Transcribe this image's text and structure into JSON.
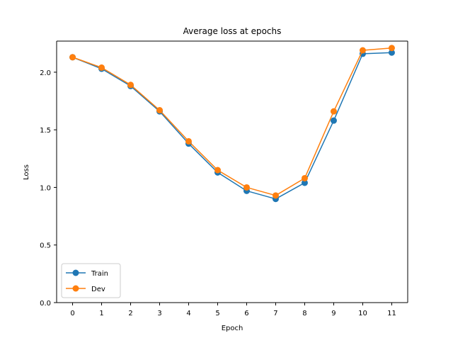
{
  "chart_data": {
    "type": "line",
    "title": "Average loss at epochs",
    "xlabel": "Epoch",
    "ylabel": "Loss",
    "x": [
      0,
      1,
      2,
      3,
      4,
      5,
      6,
      7,
      8,
      9,
      10,
      11
    ],
    "xticks": [
      "0",
      "1",
      "2",
      "3",
      "4",
      "5",
      "6",
      "7",
      "8",
      "9",
      "10",
      "11"
    ],
    "xlim": [
      -0.55,
      11.55
    ],
    "ylim": [
      0.0,
      2.27
    ],
    "yticks": [
      "0.0",
      "0.5",
      "1.0",
      "1.5",
      "2.0"
    ],
    "ytick_values": [
      0.0,
      0.5,
      1.0,
      1.5,
      2.0
    ],
    "grid": false,
    "legend_position": "lower-left",
    "series": [
      {
        "name": "Train",
        "color": "#1f77b4",
        "values": [
          2.13,
          2.03,
          1.88,
          1.66,
          1.38,
          1.13,
          0.97,
          0.9,
          1.04,
          1.58,
          2.16,
          2.17
        ]
      },
      {
        "name": "Dev",
        "color": "#ff7f0e",
        "values": [
          2.13,
          2.04,
          1.89,
          1.67,
          1.4,
          1.15,
          1.0,
          0.93,
          1.08,
          1.66,
          2.19,
          2.21
        ]
      }
    ]
  }
}
